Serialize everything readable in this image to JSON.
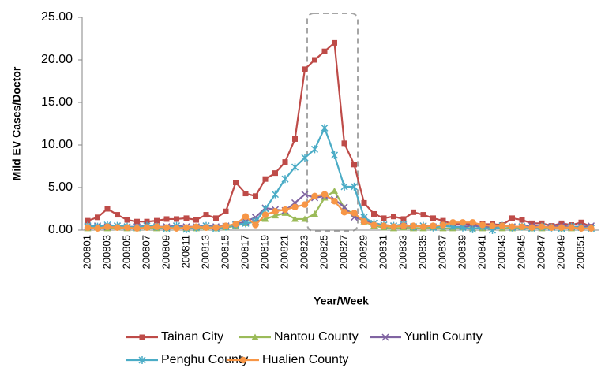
{
  "chart_data": {
    "type": "line",
    "y_label": "Mild EV Cases/Doctor",
    "x_label": "Year/Week",
    "categories": [
      "200801",
      null,
      "200803",
      null,
      "200805",
      null,
      "200807",
      null,
      "200809",
      null,
      "200811",
      null,
      "200813",
      null,
      "200815",
      null,
      "200817",
      null,
      "200819",
      null,
      "200821",
      null,
      "200823",
      null,
      "200825",
      null,
      "200827",
      null,
      "200829",
      null,
      "200831",
      null,
      "200833",
      null,
      "200835",
      null,
      "200837",
      null,
      "200839",
      null,
      "200841",
      null,
      "200843",
      null,
      "200845",
      null,
      "200847",
      null,
      "200849",
      null,
      "200851",
      null
    ],
    "ylim": [
      0,
      25
    ],
    "yticks": [
      {
        "value": 0,
        "label": "0.00"
      },
      {
        "value": 5,
        "label": "5.00"
      },
      {
        "value": 10,
        "label": "10.00"
      },
      {
        "value": 15,
        "label": "15.00"
      },
      {
        "value": 20,
        "label": "20.00"
      },
      {
        "value": 25,
        "label": "25.00"
      }
    ],
    "grid": false,
    "legend": "bottom",
    "series": [
      {
        "name": "Tainan City",
        "color": "#be4b48",
        "values": [
          1.1,
          1.5,
          2.5,
          1.8,
          1.2,
          1.0,
          1.0,
          1.1,
          1.3,
          1.3,
          1.4,
          1.2,
          1.8,
          1.4,
          2.2,
          5.6,
          4.3,
          4.0,
          6.0,
          6.7,
          8.0,
          10.7,
          18.9,
          20.0,
          21.0,
          22.0,
          10.2,
          7.7,
          3.2,
          1.9,
          1.4,
          1.6,
          1.3,
          2.1,
          1.8,
          1.4,
          1.1,
          0.7,
          0.7,
          0.7,
          0.7,
          0.7,
          0.6,
          1.4,
          1.2,
          0.8,
          0.8,
          0.5,
          0.8,
          0.6,
          0.9,
          0.4
        ]
      },
      {
        "name": "Nantou County",
        "color": "#9bbb59",
        "values": [
          0.2,
          0.3,
          0.2,
          0.3,
          0.2,
          0.2,
          0.3,
          0.2,
          0.2,
          0.3,
          0.2,
          0.2,
          0.3,
          0.2,
          0.3,
          0.5,
          0.8,
          1.0,
          1.3,
          1.7,
          2.0,
          1.3,
          1.3,
          1.9,
          3.8,
          4.6,
          2.6,
          1.8,
          1.0,
          0.5,
          0.3,
          0.2,
          0.3,
          0.2,
          0.2,
          0.3,
          0.2,
          0.2,
          0.3,
          0.2,
          0.2,
          0.3,
          0.2,
          0.2,
          0.3,
          0.2,
          0.2,
          0.3,
          0.2,
          0.2,
          0.3,
          0.2
        ]
      },
      {
        "name": "Yunlin County",
        "color": "#8064a2",
        "values": [
          0.4,
          0.5,
          0.4,
          0.5,
          0.4,
          0.4,
          0.5,
          0.4,
          0.4,
          0.5,
          0.4,
          0.4,
          0.5,
          0.4,
          0.5,
          0.7,
          1.0,
          1.5,
          2.6,
          2.4,
          2.3,
          3.2,
          4.2,
          3.8,
          4.0,
          3.6,
          2.7,
          1.5,
          1.2,
          0.8,
          0.6,
          0.5,
          0.5,
          0.4,
          0.5,
          0.4,
          0.5,
          0.4,
          0.4,
          0.5,
          0.4,
          0.4,
          0.5,
          0.4,
          0.4,
          0.5,
          0.4,
          0.4,
          0.5,
          0.4,
          0.4,
          0.5
        ]
      },
      {
        "name": "Penghu County",
        "color": "#4bacc6",
        "values": [
          0.5,
          0.4,
          0.6,
          0.5,
          0.4,
          0.3,
          0.5,
          0.4,
          0.2,
          0.5,
          0.1,
          0.3,
          0.5,
          0.2,
          0.4,
          0.6,
          0.8,
          1.0,
          2.5,
          4.2,
          6.0,
          7.4,
          8.5,
          9.5,
          12.0,
          8.8,
          5.1,
          5.1,
          1.5,
          0.8,
          0.6,
          0.5,
          0.7,
          0.4,
          0.5,
          0.3,
          0.5,
          0.4,
          0.3,
          0.1,
          0.4,
          0.0,
          0.5,
          0.3,
          0.4,
          0.2,
          0.4,
          0.3,
          0.2,
          0.4,
          0.3,
          0.2
        ]
      },
      {
        "name": "Hualien County",
        "color": "#f79646",
        "values": [
          0.3,
          0.2,
          0.4,
          0.3,
          0.3,
          0.2,
          0.3,
          0.4,
          0.3,
          0.2,
          0.3,
          0.4,
          0.3,
          0.3,
          0.5,
          0.7,
          1.6,
          0.6,
          1.8,
          2.2,
          2.4,
          2.7,
          3.0,
          4.0,
          4.2,
          3.4,
          2.1,
          2.0,
          1.0,
          0.6,
          0.5,
          0.4,
          0.5,
          0.5,
          0.4,
          0.5,
          0.6,
          0.9,
          0.9,
          0.9,
          0.6,
          0.5,
          0.5,
          0.4,
          0.4,
          0.3,
          0.4,
          0.3,
          0.3,
          0.3,
          0.2,
          0.2
        ]
      }
    ]
  }
}
